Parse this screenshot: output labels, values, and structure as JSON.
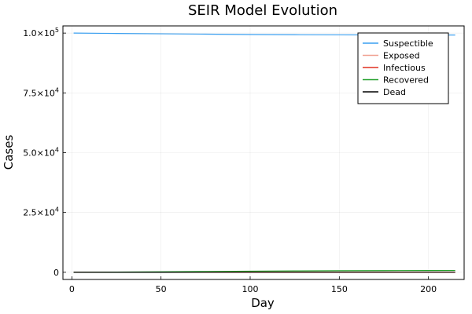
{
  "chart_data": {
    "type": "line",
    "title": "SEIR Model Evolution",
    "xlabel": "Day",
    "ylabel": "Cases",
    "xlim": [
      -5,
      220
    ],
    "ylim": [
      -3000,
      103000
    ],
    "x_ticks": [
      0,
      50,
      100,
      150,
      200
    ],
    "y_ticks": [
      {
        "value": 0,
        "mantissa": "0",
        "exponent": ""
      },
      {
        "value": 25000,
        "mantissa": "2.5×10",
        "exponent": "4"
      },
      {
        "value": 50000,
        "mantissa": "5.0×10",
        "exponent": "4"
      },
      {
        "value": 75000,
        "mantissa": "7.5×10",
        "exponent": "4"
      },
      {
        "value": 100000,
        "mantissa": "1.0×10",
        "exponent": "5"
      }
    ],
    "grid": true,
    "legend_position": "top-right",
    "x": [
      1,
      25,
      50,
      75,
      100,
      125,
      150,
      175,
      200,
      215
    ],
    "series": [
      {
        "name": "Suspectible",
        "color": "#3a9ff0",
        "values": [
          100000,
          99850,
          99700,
          99550,
          99400,
          99300,
          99250,
          99220,
          99200,
          99190
        ]
      },
      {
        "name": "Exposed",
        "color": "#f0a090",
        "values": [
          5,
          12,
          20,
          25,
          28,
          28,
          26,
          24,
          22,
          20
        ]
      },
      {
        "name": "Infectious",
        "color": "#e03020",
        "values": [
          5,
          30,
          60,
          80,
          90,
          85,
          78,
          70,
          62,
          58
        ]
      },
      {
        "name": "Recovered",
        "color": "#22a02a",
        "values": [
          0,
          100,
          220,
          340,
          460,
          560,
          640,
          700,
          740,
          760
        ]
      },
      {
        "name": "Dead",
        "color": "#000000",
        "values": [
          0,
          2,
          5,
          8,
          11,
          13,
          15,
          17,
          18,
          19
        ]
      }
    ]
  }
}
